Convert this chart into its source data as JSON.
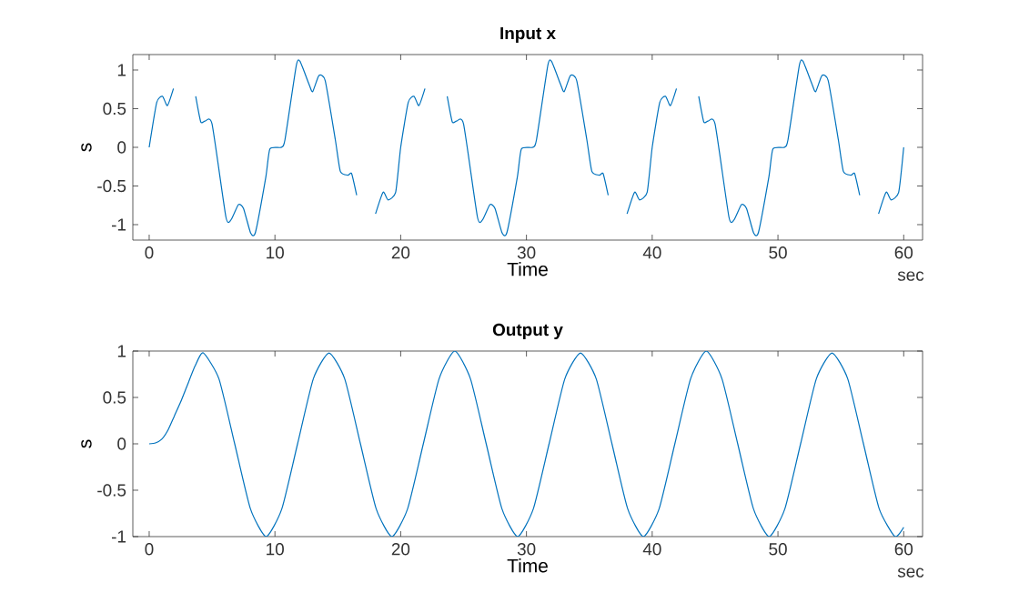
{
  "chart_data": [
    {
      "type": "line",
      "title": "Input x",
      "xlabel": "Time",
      "ylabel": "s",
      "annotations": [
        "sec"
      ],
      "color": "#0072bd",
      "grid": false,
      "xlim": [
        -1.3,
        61.5
      ],
      "ylim": [
        -1.2,
        1.2
      ],
      "xticks": [
        0,
        10,
        20,
        30,
        40,
        50,
        60
      ],
      "yticks": [
        -1,
        -0.5,
        0,
        0.5,
        1
      ],
      "x": [
        0,
        0.6,
        1.06,
        1.45,
        1.93,
        2.5,
        2.9,
        3.7,
        4.1,
        4.44,
        5.0,
        6.1,
        6.5,
        7.1,
        7.5,
        8.07,
        8.45,
        9.28,
        9.6,
        10.5,
        10.8,
        11.7,
        12.0,
        12.7,
        13.0,
        13.5,
        14.0,
        14.8,
        15.2,
        15.8,
        16.1,
        16.5,
        17.0,
        17.5,
        18.0,
        18.6,
        19.0,
        19.6,
        20,
        20.6,
        21.06,
        21.45,
        21.93,
        22.5,
        22.9,
        23.7,
        24.1,
        24.44,
        25.0,
        26.1,
        26.5,
        27.1,
        27.5,
        28.07,
        28.45,
        29.28,
        29.6,
        30.5,
        30.8,
        31.7,
        32.0,
        32.7,
        33.0,
        33.5,
        34.0,
        34.8,
        35.2,
        35.8,
        36.1,
        36.5,
        37.0,
        37.5,
        38.0,
        38.6,
        39.0,
        39.6,
        40,
        40.6,
        41.06,
        41.45,
        41.93,
        42.5,
        42.9,
        43.7,
        44.1,
        44.44,
        45.0,
        46.1,
        46.5,
        47.1,
        47.5,
        48.07,
        48.45,
        49.28,
        49.6,
        50.5,
        50.8,
        51.7,
        52.0,
        52.7,
        53.0,
        53.5,
        54.0,
        54.8,
        55.2,
        55.8,
        56.1,
        56.5,
        57.0,
        57.5,
        58.0,
        58.6,
        59.0,
        59.6,
        60
      ],
      "values": [
        0,
        0.58,
        0.66,
        0.54,
        0.76,
        null,
        null,
        0.66,
        0.33,
        0.34,
        0.3,
        -0.9,
        -0.94,
        -0.74,
        -0.79,
        -1.11,
        -1.1,
        -0.38,
        -0.02,
        0,
        0.1,
        1.06,
        1.11,
        0.82,
        0.72,
        0.93,
        0.86,
        0.1,
        -0.31,
        -0.36,
        -0.34,
        -0.62,
        null,
        null,
        -0.86,
        -0.58,
        -0.68,
        -0.58,
        0,
        0.58,
        0.66,
        0.54,
        0.76,
        null,
        null,
        0.66,
        0.33,
        0.34,
        0.3,
        -0.9,
        -0.94,
        -0.74,
        -0.79,
        -1.11,
        -1.1,
        -0.38,
        -0.02,
        0,
        0.1,
        1.06,
        1.11,
        0.82,
        0.72,
        0.93,
        0.86,
        0.1,
        -0.31,
        -0.36,
        -0.34,
        -0.62,
        null,
        null,
        -0.86,
        -0.58,
        -0.68,
        -0.58,
        0,
        0.58,
        0.66,
        0.54,
        0.76,
        null,
        null,
        0.66,
        0.33,
        0.34,
        0.3,
        -0.9,
        -0.94,
        -0.74,
        -0.79,
        -1.11,
        -1.1,
        -0.38,
        -0.02,
        0,
        0.1,
        1.06,
        1.11,
        0.82,
        0.72,
        0.93,
        0.86,
        0.1,
        -0.31,
        -0.36,
        -0.34,
        -0.62,
        null,
        null,
        -0.86,
        -0.58,
        -0.68,
        -0.58,
        0
      ]
    },
    {
      "type": "line",
      "title": "Output y",
      "xlabel": "Time",
      "ylabel": "s",
      "annotations": [
        "sec"
      ],
      "color": "#0072bd",
      "grid": false,
      "xlim": [
        -1.3,
        61.5
      ],
      "ylim": [
        -1,
        1
      ],
      "xticks": [
        0,
        10,
        20,
        30,
        40,
        50,
        60
      ],
      "yticks": [
        -1,
        -0.5,
        0,
        0.5,
        1
      ],
      "x": [
        0,
        0.5,
        1,
        1.5,
        2,
        2.5,
        3,
        3.65,
        4.3,
        5.55,
        6.8,
        8.05,
        9.3,
        10.55,
        11.8,
        13.05,
        14.3,
        15.55,
        16.8,
        18.05,
        19.3,
        20.55,
        21.8,
        23.05,
        24.3,
        25.55,
        26.8,
        28.05,
        29.3,
        30.55,
        31.8,
        33.05,
        34.3,
        35.55,
        36.8,
        38.05,
        39.3,
        40.55,
        41.8,
        43.05,
        44.3,
        45.55,
        46.8,
        48.05,
        49.3,
        50.55,
        51.8,
        53.05,
        54.3,
        55.55,
        56.8,
        58.05,
        59.3,
        60
      ],
      "values": [
        0,
        0.01,
        0.05,
        0.15,
        0.3,
        0.45,
        0.62,
        0.84,
        0.98,
        0.7,
        0,
        -0.7,
        -1,
        -0.7,
        0,
        0.7,
        0.98,
        0.7,
        0,
        -0.7,
        -1,
        -0.7,
        0,
        0.7,
        1,
        0.7,
        0,
        -0.7,
        -1,
        -0.7,
        0,
        0.7,
        0.98,
        0.7,
        0,
        -0.7,
        -1,
        -0.7,
        0,
        0.7,
        1,
        0.7,
        0,
        -0.7,
        -1,
        -0.7,
        0,
        0.7,
        0.98,
        0.7,
        0,
        -0.7,
        -1,
        -0.9
      ]
    }
  ]
}
